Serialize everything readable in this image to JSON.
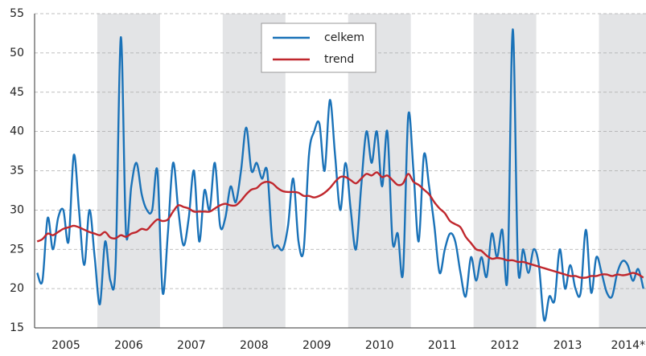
{
  "chart_data": {
    "type": "line",
    "categories": [
      null,
      null,
      null,
      null,
      null,
      null,
      "2005",
      null,
      null,
      null,
      null,
      null,
      null,
      null,
      null,
      null,
      null,
      null,
      "2006",
      null,
      null,
      null,
      null,
      null,
      null,
      null,
      null,
      null,
      null,
      null,
      "2007",
      null,
      null,
      null,
      null,
      null,
      null,
      null,
      null,
      null,
      null,
      null,
      "2008",
      null,
      null,
      null,
      null,
      null,
      null,
      null,
      null,
      null,
      null,
      null,
      "2009",
      null,
      null,
      null,
      null,
      null,
      null,
      null,
      null,
      null,
      null,
      null,
      "2010",
      null,
      null,
      null,
      null,
      null,
      null,
      null,
      null,
      null,
      null,
      null,
      "2011",
      null,
      null,
      null,
      null,
      null,
      null,
      null,
      null,
      null,
      null,
      null,
      "2012",
      null,
      null,
      null,
      null,
      null,
      null,
      null,
      null,
      null,
      null,
      null,
      "2013",
      null,
      null,
      null,
      null,
      null,
      null,
      null,
      null,
      null,
      null,
      null,
      "2014*)",
      null,
      null
    ],
    "series": [
      {
        "name": "celkem",
        "color": "#1a72b8",
        "values": [
          22,
          21,
          29,
          25,
          29,
          30,
          26,
          37,
          30,
          23,
          30,
          24,
          18,
          26,
          21,
          23,
          52,
          27,
          33,
          36,
          32,
          30,
          30,
          35,
          19.5,
          27,
          36,
          30,
          25.5,
          29,
          35,
          26,
          32.5,
          30,
          36,
          28,
          29,
          33,
          31,
          35,
          40.5,
          35,
          36,
          34,
          35,
          26,
          25.5,
          25,
          28,
          34,
          26,
          25,
          37,
          40,
          41,
          35,
          44,
          37,
          30,
          36,
          30,
          25,
          33,
          40,
          36,
          40,
          33,
          40,
          26,
          27,
          22,
          42,
          35,
          26,
          37,
          33,
          28,
          22,
          25,
          27,
          26,
          22,
          19,
          24,
          21,
          24,
          21.5,
          27,
          24,
          27.5,
          21.5,
          53,
          23,
          25,
          22,
          25,
          23,
          16,
          19,
          18.5,
          25,
          20,
          23,
          20,
          19.5,
          27.5,
          19.5,
          24,
          22,
          19.5,
          19,
          22,
          23.5,
          23,
          21,
          22.5,
          20
        ]
      },
      {
        "name": "trend",
        "color": "#c0272d",
        "values": [
          26,
          26.3,
          27,
          26.8,
          27.2,
          27.6,
          27.8,
          28,
          27.8,
          27.5,
          27.2,
          27,
          26.8,
          27.2,
          26.5,
          26.4,
          26.8,
          26.6,
          27,
          27.2,
          27.6,
          27.5,
          28.2,
          28.8,
          28.6,
          28.8,
          29.8,
          30.6,
          30.4,
          30.2,
          29.8,
          29.8,
          29.8,
          29.8,
          30.2,
          30.6,
          30.8,
          30.6,
          30.6,
          31.2,
          32,
          32.6,
          32.8,
          33.4,
          33.6,
          33.4,
          32.8,
          32.4,
          32.3,
          32.3,
          32.2,
          31.8,
          31.8,
          31.6,
          31.8,
          32.2,
          32.8,
          33.6,
          34.2,
          34.2,
          33.8,
          33.4,
          34,
          34.6,
          34.4,
          34.8,
          34.2,
          34.4,
          33.8,
          33.2,
          33.4,
          34.6,
          33.6,
          33.2,
          32.6,
          32,
          31,
          30.2,
          29.6,
          28.6,
          28.2,
          27.8,
          26.6,
          25.8,
          25,
          24.8,
          24.2,
          23.8,
          23.9,
          23.8,
          23.6,
          23.6,
          23.4,
          23.4,
          23.2,
          23,
          22.8,
          22.6,
          22.4,
          22.2,
          22,
          21.8,
          21.6,
          21.6,
          21.4,
          21.4,
          21.6,
          21.6,
          21.8,
          21.8,
          21.6,
          21.8,
          21.7,
          21.8,
          22,
          21.8,
          21.4
        ]
      }
    ],
    "ylim": [
      15,
      55
    ],
    "yticks": [
      15,
      20,
      25,
      30,
      35,
      40,
      45,
      50,
      55
    ],
    "grid": true,
    "legend": "top-center"
  }
}
